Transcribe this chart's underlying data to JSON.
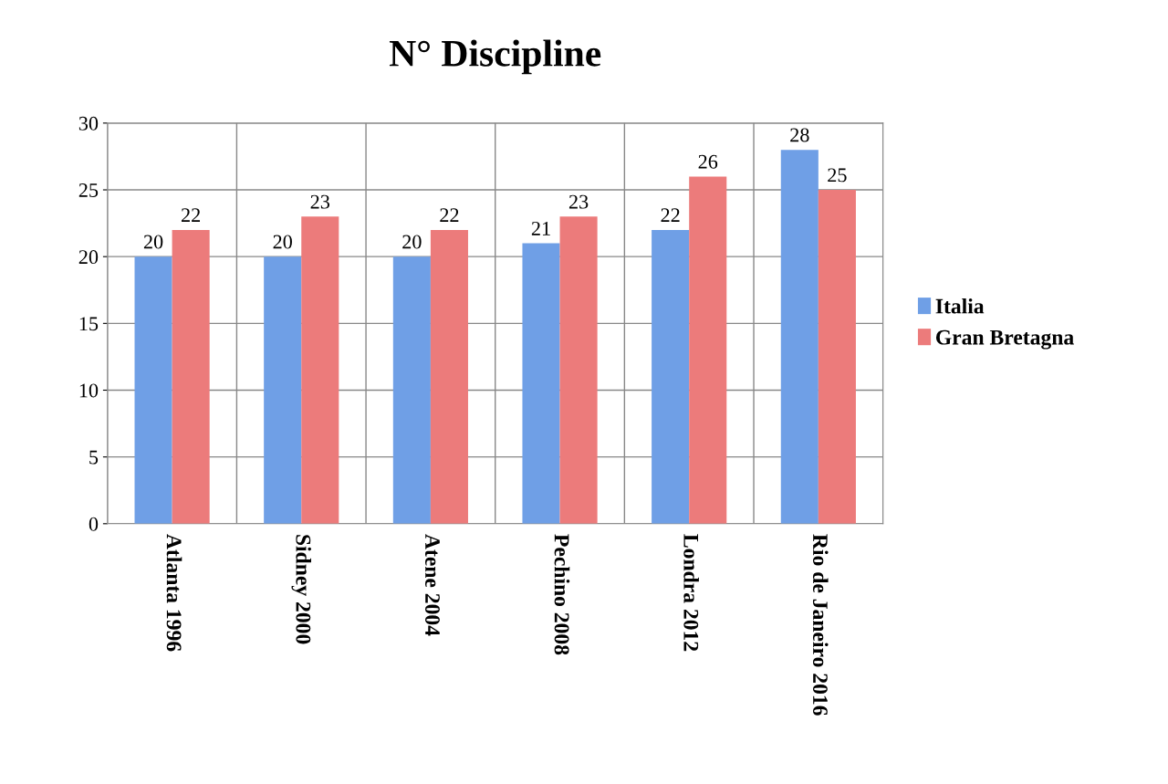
{
  "chart_data": {
    "type": "bar",
    "title": "N° Discipline",
    "categories": [
      "Atlanta 1996",
      "Sidney 2000",
      "Atene 2004",
      "Pechino 2008",
      "Londra 2012",
      "Rio de Janeiro 2016"
    ],
    "series": [
      {
        "name": "Italia",
        "color": "#6f9fe6",
        "values": [
          20,
          20,
          20,
          21,
          22,
          28
        ]
      },
      {
        "name": "Gran Bretagna",
        "color": "#ec7b7b",
        "values": [
          22,
          23,
          22,
          23,
          26,
          25
        ]
      }
    ],
    "ylim": [
      0,
      30
    ],
    "yticks": [
      0,
      5,
      10,
      15,
      20,
      25,
      30
    ],
    "grid": true,
    "legend": "right",
    "data_labels": true
  }
}
